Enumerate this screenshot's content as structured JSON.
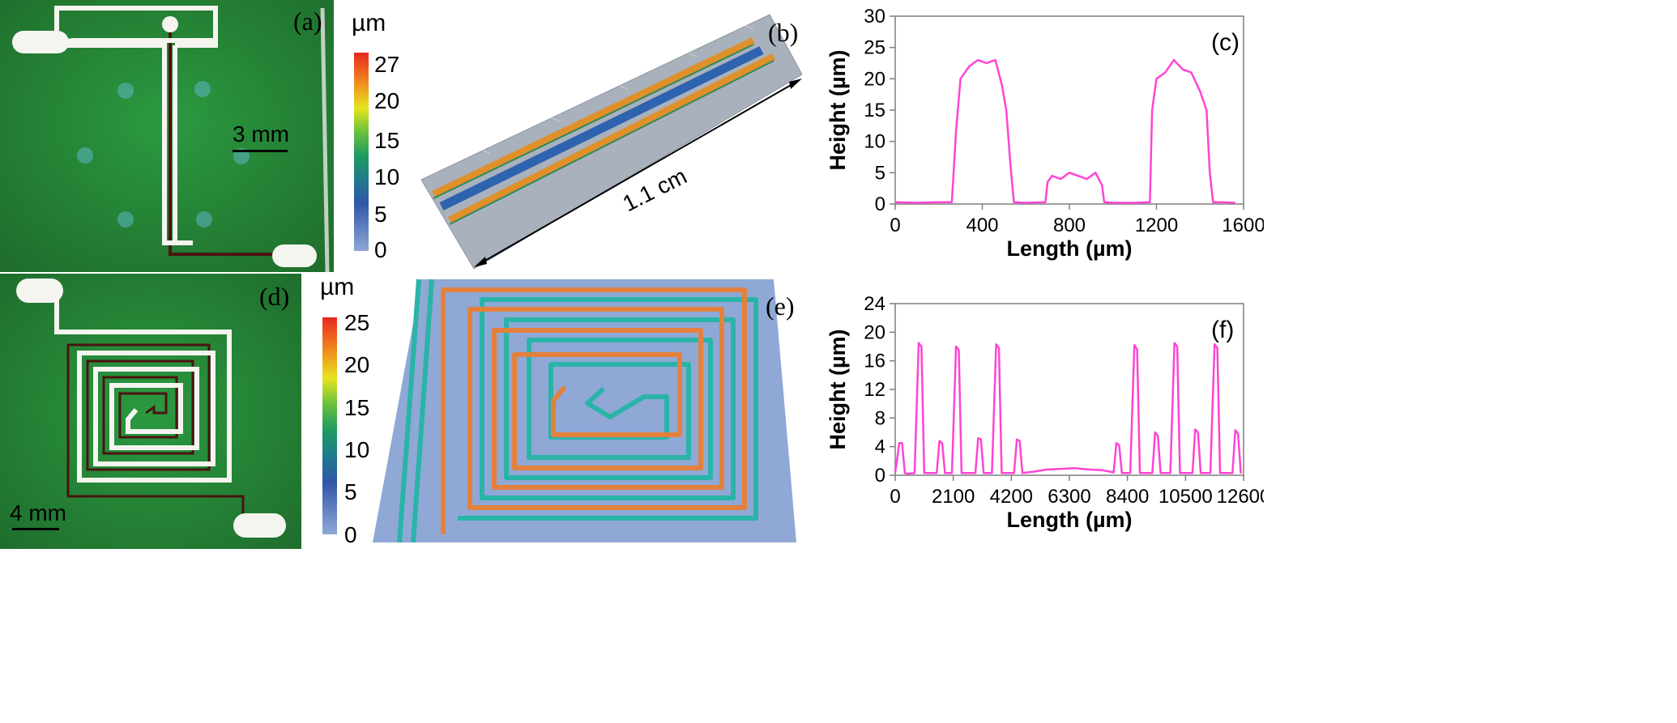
{
  "panel_labels": {
    "a": "(a)",
    "b": "(b)",
    "c": "(c)",
    "d": "(d)",
    "e": "(e)",
    "f": "(f)"
  },
  "photo_a": {
    "scale_bar": "3 mm"
  },
  "photo_d": {
    "scale_bar": "4 mm"
  },
  "colorbar_top": {
    "unit": "µm",
    "ticks": [
      "27",
      "20",
      "15",
      "10",
      "5",
      "0"
    ]
  },
  "colorbar_bottom": {
    "unit": "µm",
    "ticks": [
      "25",
      "20",
      "15",
      "10",
      "5",
      "0"
    ]
  },
  "surface_b": {
    "dimension_label": "1.1 cm"
  },
  "colors": {
    "profile_line": "#ff44d4",
    "substrate_green": "#2f8a3a",
    "trace_white": "#f5f5ef",
    "trace_dark": "#4a1410"
  },
  "chart_data": [
    {
      "type": "line",
      "panel": "(c)",
      "xlabel": "Length (µm)",
      "ylabel": "Height (µm)",
      "xlim": [
        0,
        1600
      ],
      "ylim": [
        0,
        30
      ],
      "xticks": [
        0,
        400,
        800,
        1200,
        1600
      ],
      "yticks": [
        0,
        5,
        10,
        15,
        20,
        25,
        30
      ],
      "grid": false,
      "x": [
        0,
        100,
        200,
        260,
        280,
        300,
        340,
        380,
        420,
        460,
        490,
        510,
        530,
        545,
        600,
        690,
        700,
        720,
        760,
        800,
        840,
        880,
        920,
        950,
        960,
        1000,
        1100,
        1170,
        1180,
        1200,
        1240,
        1280,
        1320,
        1360,
        1400,
        1430,
        1445,
        1460,
        1500,
        1560
      ],
      "y": [
        0.3,
        0.2,
        0.3,
        0.3,
        12,
        20,
        22,
        23,
        22.5,
        23,
        19,
        15,
        6,
        0.3,
        0.2,
        0.3,
        3.5,
        4.5,
        4,
        5,
        4.5,
        4,
        5,
        3,
        0.3,
        0.2,
        0.2,
        0.3,
        15,
        20,
        21,
        23,
        21.5,
        21,
        18,
        15,
        5,
        0.3,
        0.3,
        0.2
      ]
    },
    {
      "type": "line",
      "panel": "(f)",
      "xlabel": "Length (µm)",
      "ylabel": "Height (µm)",
      "xlim": [
        0,
        12600
      ],
      "ylim": [
        0,
        24
      ],
      "xticks": [
        0,
        2100,
        4200,
        6300,
        8400,
        10500,
        12600
      ],
      "yticks": [
        0,
        4,
        8,
        12,
        16,
        20,
        24
      ],
      "grid": false,
      "x": [
        0,
        150,
        250,
        350,
        450,
        700,
        850,
        950,
        1050,
        1500,
        1600,
        1700,
        1800,
        2050,
        2200,
        2300,
        2400,
        2900,
        3000,
        3100,
        3200,
        3500,
        3650,
        3750,
        3850,
        4300,
        4400,
        4500,
        4600,
        5000,
        5500,
        6000,
        6500,
        7000,
        7500,
        7900,
        8000,
        8100,
        8200,
        8500,
        8650,
        8750,
        8850,
        9300,
        9400,
        9500,
        9600,
        9950,
        10100,
        10200,
        10300,
        10750,
        10850,
        10950,
        11050,
        11400,
        11550,
        11650,
        11750,
        12200,
        12300,
        12400,
        12500
      ],
      "y": [
        0.4,
        4.5,
        4.5,
        0.3,
        0.2,
        0.3,
        18.5,
        18,
        0.3,
        0.3,
        4.8,
        4.5,
        0.3,
        0.3,
        18,
        17.5,
        0.3,
        0.3,
        5.2,
        5,
        0.3,
        0.3,
        18.3,
        17.8,
        0.3,
        0.3,
        5,
        4.8,
        0.3,
        0.5,
        0.8,
        0.9,
        1.0,
        0.8,
        0.7,
        0.4,
        4.5,
        4.2,
        0.3,
        0.3,
        18.2,
        17.6,
        0.3,
        0.3,
        6,
        5.5,
        0.3,
        0.3,
        18.5,
        18,
        0.3,
        0.3,
        6.4,
        6,
        0.3,
        0.3,
        18.3,
        17.8,
        0.3,
        0.3,
        6.3,
        5.8,
        0.3
      ]
    }
  ]
}
